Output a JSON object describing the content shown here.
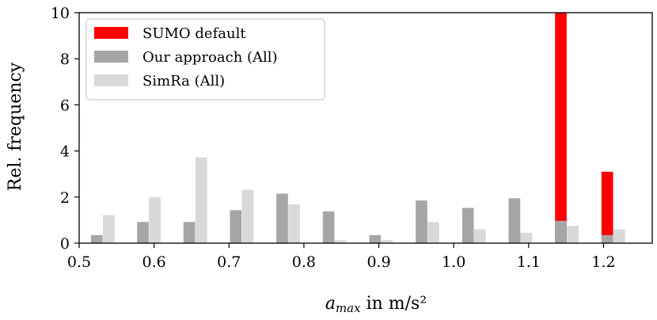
{
  "chart_data": {
    "type": "bar",
    "xlabel_var": "a",
    "xlabel_sub": "max",
    "xlabel_rest": " in m/s²",
    "ylabel": "Rel. frequency",
    "xlim": [
      0.5,
      1.265
    ],
    "ylim": [
      0,
      10
    ],
    "xticks": [
      "0.5",
      "0.6",
      "0.7",
      "0.8",
      "0.9",
      "1.0",
      "1.1",
      "1.2"
    ],
    "yticks": [
      "0",
      "2",
      "4",
      "6",
      "8",
      "10"
    ],
    "grid": false,
    "legend_position": "upper-left",
    "bar_width": 0.0155,
    "series": [
      {
        "name": "SUMO default",
        "color": "#ff0000",
        "bars": [
          {
            "x": 1.081,
            "y": 0.5
          },
          {
            "x": 1.143,
            "y": 10
          },
          {
            "x": 1.205,
            "y": 3.1
          }
        ]
      },
      {
        "name": "Our approach (All)",
        "color": "#a6a6a6",
        "bars": [
          {
            "x": 0.5235,
            "y": 0.35
          },
          {
            "x": 0.585,
            "y": 0.92
          },
          {
            "x": 0.647,
            "y": 0.92
          },
          {
            "x": 0.709,
            "y": 1.43
          },
          {
            "x": 0.771,
            "y": 2.15
          },
          {
            "x": 0.833,
            "y": 1.38
          },
          {
            "x": 0.895,
            "y": 0.35
          },
          {
            "x": 0.957,
            "y": 1.85
          },
          {
            "x": 1.019,
            "y": 1.53
          },
          {
            "x": 1.081,
            "y": 1.95
          },
          {
            "x": 1.143,
            "y": 0.97
          },
          {
            "x": 1.205,
            "y": 0.35
          }
        ]
      },
      {
        "name": "SimRa (All)",
        "color": "#d9d9d9",
        "bars": [
          {
            "x": 0.5395,
            "y": 1.22
          },
          {
            "x": 0.601,
            "y": 2.0
          },
          {
            "x": 0.663,
            "y": 3.72
          },
          {
            "x": 0.725,
            "y": 2.32
          },
          {
            "x": 0.787,
            "y": 1.68
          },
          {
            "x": 0.849,
            "y": 0.13
          },
          {
            "x": 0.911,
            "y": 0.13
          },
          {
            "x": 0.973,
            "y": 0.92
          },
          {
            "x": 1.035,
            "y": 0.6
          },
          {
            "x": 1.097,
            "y": 0.45
          },
          {
            "x": 1.159,
            "y": 0.75
          },
          {
            "x": 1.221,
            "y": 0.6
          }
        ]
      }
    ]
  }
}
